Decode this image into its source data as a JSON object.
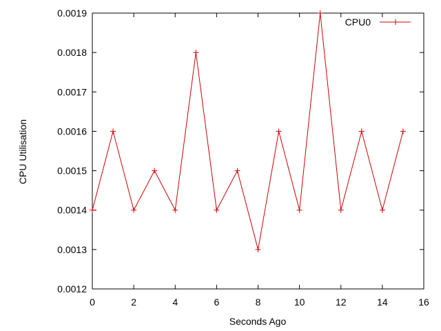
{
  "chart_data": {
    "type": "line",
    "title": "",
    "xlabel": "Seconds Ago",
    "ylabel": "CPU Utilisation",
    "xlim": [
      0,
      16
    ],
    "ylim": [
      0.0012,
      0.0019
    ],
    "x_ticks": [
      0,
      2,
      4,
      6,
      8,
      10,
      12,
      14,
      16
    ],
    "x_tick_labels": [
      "0",
      "2",
      "4",
      "6",
      "8",
      "10",
      "12",
      "14",
      "16"
    ],
    "y_ticks": [
      0.0012,
      0.0013,
      0.0014,
      0.0015,
      0.0016,
      0.0017,
      0.0018,
      0.0019
    ],
    "y_tick_labels": [
      "0.0012",
      "0.0013",
      "0.0014",
      "0.0015",
      "0.0016",
      "0.0017",
      "0.0018",
      "0.0019"
    ],
    "grid": false,
    "legend_position": "top-right",
    "series": [
      {
        "name": "CPU0",
        "color": "#cc0000",
        "marker": "plus",
        "x": [
          0,
          1,
          2,
          3,
          4,
          5,
          6,
          7,
          8,
          9,
          10,
          11,
          12,
          13,
          14,
          15
        ],
        "y": [
          0.0014,
          0.0016,
          0.0014,
          0.0015,
          0.0014,
          0.0018,
          0.0014,
          0.0015,
          0.0013,
          0.0016,
          0.0014,
          0.0019,
          0.0014,
          0.0016,
          0.0014,
          0.0016
        ]
      }
    ]
  }
}
